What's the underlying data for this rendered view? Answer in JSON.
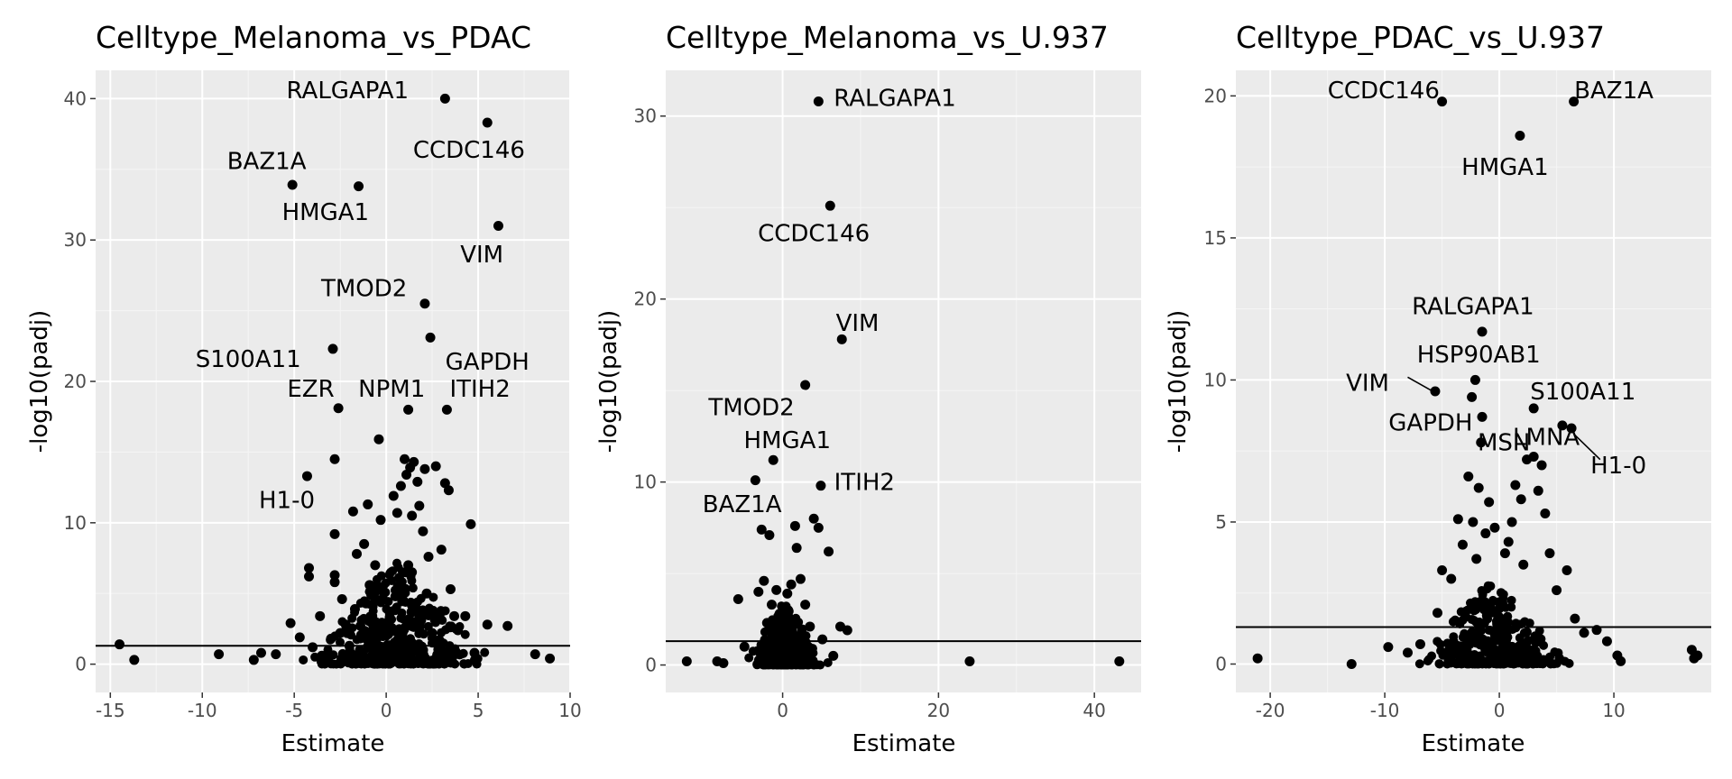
{
  "colors": {
    "panel_bg": "#ebebeb",
    "grid_major": "#ffffff",
    "grid_minor": "#f5f5f5",
    "point": "#000000",
    "hline": "#000000",
    "tick": "#4d4d4d"
  },
  "chart_data": [
    {
      "type": "scatter",
      "title": "Celltype_Melanoma_vs_PDAC",
      "xlabel": "Estimate",
      "ylabel": "-log10(padj)",
      "xlim": [
        -15.8,
        10.0
      ],
      "ylim": [
        -2.0,
        42.0
      ],
      "xticks": [
        -15,
        -10,
        -5,
        0,
        5,
        10
      ],
      "xtick_labels": [
        "-15",
        "-10",
        "-5",
        "0",
        "5",
        "10"
      ],
      "yticks": [
        0,
        10,
        20,
        30,
        40
      ],
      "ytick_labels": [
        "0",
        "10",
        "20",
        "30",
        "40"
      ],
      "hline": 1.3,
      "labels": [
        {
          "text": "RALGAPA1",
          "x": 3.2,
          "y": 40.0,
          "tx": -2.1,
          "ty": 40.6
        },
        {
          "text": "CCDC146",
          "x": 5.5,
          "y": 38.3,
          "tx": 4.5,
          "ty": 36.4
        },
        {
          "text": "BAZ1A",
          "x": -5.1,
          "y": 33.9,
          "tx": -6.5,
          "ty": 35.6
        },
        {
          "text": "HMGA1",
          "x": -1.5,
          "y": 33.8,
          "tx": -3.3,
          "ty": 32.0
        },
        {
          "text": "VIM",
          "x": 6.1,
          "y": 31.0,
          "tx": 5.2,
          "ty": 29.0
        },
        {
          "text": "TMOD2",
          "x": 2.1,
          "y": 25.5,
          "tx": -1.2,
          "ty": 26.6
        },
        {
          "text": "GAPDH",
          "x": 2.4,
          "y": 23.1,
          "tx": 5.5,
          "ty": 21.4
        },
        {
          "text": "S100A11",
          "x": -2.9,
          "y": 22.3,
          "tx": -7.5,
          "ty": 21.6
        },
        {
          "text": "EZR",
          "x": -2.6,
          "y": 18.1,
          "tx": -4.1,
          "ty": 19.5
        },
        {
          "text": "NPM1",
          "x": 1.2,
          "y": 18.0,
          "tx": 0.3,
          "ty": 19.5
        },
        {
          "text": "ITIH2",
          "x": 3.3,
          "y": 18.0,
          "tx": 5.1,
          "ty": 19.5
        },
        {
          "text": "H1-0",
          "x": -4.3,
          "y": 13.3,
          "tx": -5.4,
          "ty": 11.6
        }
      ],
      "points": [
        {
          "x": 3.2,
          "y": 40.0
        },
        {
          "x": 5.5,
          "y": 38.3
        },
        {
          "x": -5.1,
          "y": 33.9
        },
        {
          "x": -1.5,
          "y": 33.8
        },
        {
          "x": 6.1,
          "y": 31.0
        },
        {
          "x": 2.1,
          "y": 25.5
        },
        {
          "x": 2.4,
          "y": 23.1
        },
        {
          "x": -2.9,
          "y": 22.3
        },
        {
          "x": -2.6,
          "y": 18.1
        },
        {
          "x": 1.2,
          "y": 18.0
        },
        {
          "x": 3.3,
          "y": 18.0
        },
        {
          "x": -4.3,
          "y": 13.3
        },
        {
          "x": -14.5,
          "y": 1.4
        },
        {
          "x": -13.7,
          "y": 0.3
        },
        {
          "x": -9.1,
          "y": 0.7
        },
        {
          "x": -7.2,
          "y": 0.3
        },
        {
          "x": -6.8,
          "y": 0.8
        },
        {
          "x": -6.0,
          "y": 0.7
        },
        {
          "x": -5.2,
          "y": 2.9
        },
        {
          "x": -4.7,
          "y": 1.9
        },
        {
          "x": -4.2,
          "y": 6.8
        },
        {
          "x": -4.2,
          "y": 6.2
        },
        {
          "x": -3.6,
          "y": 3.4
        },
        {
          "x": -2.8,
          "y": 14.5
        },
        {
          "x": -2.8,
          "y": 9.2
        },
        {
          "x": -2.8,
          "y": 6.3
        },
        {
          "x": -2.8,
          "y": 5.8
        },
        {
          "x": -2.4,
          "y": 4.6
        },
        {
          "x": -2.2,
          "y": 2.8
        },
        {
          "x": -1.8,
          "y": 10.8
        },
        {
          "x": -1.6,
          "y": 7.8
        },
        {
          "x": -1.2,
          "y": 8.5
        },
        {
          "x": -1.0,
          "y": 11.3
        },
        {
          "x": -0.9,
          "y": 5.6
        },
        {
          "x": -0.6,
          "y": 7.0
        },
        {
          "x": -0.4,
          "y": 15.9
        },
        {
          "x": -0.3,
          "y": 10.2
        },
        {
          "x": 0.4,
          "y": 11.9
        },
        {
          "x": 0.6,
          "y": 10.7
        },
        {
          "x": 0.8,
          "y": 12.6
        },
        {
          "x": 1.0,
          "y": 14.5
        },
        {
          "x": 1.1,
          "y": 13.4
        },
        {
          "x": 1.3,
          "y": 13.9
        },
        {
          "x": 1.4,
          "y": 10.5
        },
        {
          "x": 1.5,
          "y": 14.3
        },
        {
          "x": 1.7,
          "y": 12.9
        },
        {
          "x": 1.8,
          "y": 11.2
        },
        {
          "x": 2.0,
          "y": 9.4
        },
        {
          "x": 2.1,
          "y": 13.8
        },
        {
          "x": 2.3,
          "y": 7.6
        },
        {
          "x": 2.7,
          "y": 14.0
        },
        {
          "x": 3.0,
          "y": 8.1
        },
        {
          "x": 3.2,
          "y": 12.8
        },
        {
          "x": 3.4,
          "y": 12.3
        },
        {
          "x": 3.5,
          "y": 5.3
        },
        {
          "x": 3.7,
          "y": 3.4
        },
        {
          "x": 3.9,
          "y": 2.4
        },
        {
          "x": 4.3,
          "y": 3.4
        },
        {
          "x": 4.6,
          "y": 9.9
        },
        {
          "x": 4.8,
          "y": 0.8
        },
        {
          "x": 5.5,
          "y": 2.8
        },
        {
          "x": 6.6,
          "y": 2.7
        },
        {
          "x": 8.1,
          "y": 0.7
        },
        {
          "x": 8.9,
          "y": 0.4
        },
        {
          "x": -4.0,
          "y": 1.2
        },
        {
          "x": -3.5,
          "y": 0.6
        },
        {
          "x": -3.0,
          "y": 1.8
        },
        {
          "x": -2.5,
          "y": 2.2
        },
        {
          "x": -2.0,
          "y": 1.3
        },
        {
          "x": -1.7,
          "y": 3.9
        },
        {
          "x": -1.4,
          "y": 2.7
        },
        {
          "x": -1.1,
          "y": 4.3
        },
        {
          "x": -0.8,
          "y": 3.2
        },
        {
          "x": -0.5,
          "y": 1.9
        },
        {
          "x": -0.2,
          "y": 2.6
        },
        {
          "x": 0.2,
          "y": 3.6
        },
        {
          "x": 0.5,
          "y": 4.8
        },
        {
          "x": 0.7,
          "y": 6.1
        },
        {
          "x": 0.9,
          "y": 5.4
        },
        {
          "x": 1.2,
          "y": 7.0
        },
        {
          "x": 1.4,
          "y": 6.5
        },
        {
          "x": 1.6,
          "y": 4.0
        },
        {
          "x": 1.9,
          "y": 3.1
        },
        {
          "x": 2.2,
          "y": 5.0
        },
        {
          "x": 2.5,
          "y": 2.2
        },
        {
          "x": 2.8,
          "y": 1.4
        },
        {
          "x": 3.1,
          "y": 0.9
        },
        {
          "x": 3.6,
          "y": 0.5
        }
      ],
      "cloud": {
        "cx": 0.6,
        "sx": 1.8,
        "y_max": 7.5,
        "n": 420
      }
    },
    {
      "type": "scatter",
      "title": "Celltype_Melanoma_vs_U.937",
      "xlabel": "Estimate",
      "ylabel": "-log10(padj)",
      "xlim": [
        -15.0,
        46.0
      ],
      "ylim": [
        -1.5,
        32.5
      ],
      "xticks": [
        0,
        20,
        40
      ],
      "xtick_labels": [
        "0",
        "20",
        "40"
      ],
      "yticks": [
        0,
        10,
        20,
        30
      ],
      "ytick_labels": [
        "0",
        "10",
        "20",
        "30"
      ],
      "hline": 1.3,
      "labels": [
        {
          "text": "RALGAPA1",
          "x": 4.6,
          "y": 30.8,
          "tx": 14.4,
          "ty": 31.0
        },
        {
          "text": "CCDC146",
          "x": 6.1,
          "y": 25.1,
          "tx": 4.0,
          "ty": 23.6
        },
        {
          "text": "VIM",
          "x": 7.6,
          "y": 17.8,
          "tx": 9.6,
          "ty": 18.7
        },
        {
          "text": "TMOD2",
          "x": 2.9,
          "y": 15.3,
          "tx": -4.0,
          "ty": 14.1
        },
        {
          "text": "HMGA1",
          "x": -1.2,
          "y": 11.2,
          "tx": 0.6,
          "ty": 12.3
        },
        {
          "text": "ITIH2",
          "x": 4.9,
          "y": 9.8,
          "tx": 10.5,
          "ty": 10.0
        },
        {
          "text": "BAZ1A",
          "x": -3.5,
          "y": 10.1,
          "tx": -5.2,
          "ty": 8.8
        }
      ],
      "points": [
        {
          "x": 4.6,
          "y": 30.8
        },
        {
          "x": 6.1,
          "y": 25.1
        },
        {
          "x": 7.6,
          "y": 17.8
        },
        {
          "x": 2.9,
          "y": 15.3
        },
        {
          "x": -1.2,
          "y": 11.2
        },
        {
          "x": 4.9,
          "y": 9.8
        },
        {
          "x": -3.5,
          "y": 10.1
        },
        {
          "x": -12.3,
          "y": 0.2
        },
        {
          "x": -8.4,
          "y": 0.2
        },
        {
          "x": -7.6,
          "y": 0.1
        },
        {
          "x": -5.7,
          "y": 3.6
        },
        {
          "x": -4.9,
          "y": 1.0
        },
        {
          "x": -3.1,
          "y": 4.0
        },
        {
          "x": -2.7,
          "y": 7.4
        },
        {
          "x": -2.4,
          "y": 4.6
        },
        {
          "x": -2.0,
          "y": 2.3
        },
        {
          "x": -1.7,
          "y": 7.1
        },
        {
          "x": -1.4,
          "y": 3.3
        },
        {
          "x": -0.8,
          "y": 4.1
        },
        {
          "x": -0.4,
          "y": 2.8
        },
        {
          "x": 0.6,
          "y": 3.9
        },
        {
          "x": 1.1,
          "y": 4.4
        },
        {
          "x": 1.6,
          "y": 7.6
        },
        {
          "x": 1.8,
          "y": 6.4
        },
        {
          "x": 2.3,
          "y": 4.7
        },
        {
          "x": 2.9,
          "y": 3.3
        },
        {
          "x": 3.5,
          "y": 2.1
        },
        {
          "x": 4.0,
          "y": 8.0
        },
        {
          "x": 4.6,
          "y": 7.5
        },
        {
          "x": 5.1,
          "y": 1.4
        },
        {
          "x": 5.9,
          "y": 6.2
        },
        {
          "x": 6.5,
          "y": 0.5
        },
        {
          "x": 7.4,
          "y": 2.1
        },
        {
          "x": 8.3,
          "y": 1.9
        },
        {
          "x": 24.0,
          "y": 0.2
        },
        {
          "x": 43.2,
          "y": 0.2
        }
      ],
      "cloud": {
        "cx": 0.2,
        "sx": 1.8,
        "y_max": 3.5,
        "n": 360
      }
    },
    {
      "type": "scatter",
      "title": "Celltype_PDAC_vs_U.937",
      "xlabel": "Estimate",
      "ylabel": "-log10(padj)",
      "xlim": [
        -23.0,
        18.5
      ],
      "ylim": [
        -1.0,
        20.9
      ],
      "xticks": [
        -20,
        -10,
        0,
        10
      ],
      "xtick_labels": [
        "-20",
        "-10",
        "0",
        "10"
      ],
      "yticks": [
        0,
        5,
        10,
        15,
        20
      ],
      "ytick_labels": [
        "0",
        "5",
        "10",
        "15",
        "20"
      ],
      "hline": 1.3,
      "labels": [
        {
          "text": "CCDC146",
          "x": -5.0,
          "y": 19.8,
          "tx": -10.1,
          "ty": 20.2
        },
        {
          "text": "BAZ1A",
          "x": 6.5,
          "y": 19.8,
          "tx": 10.0,
          "ty": 20.2
        },
        {
          "text": "HMGA1",
          "x": 1.8,
          "y": 18.6,
          "tx": 0.5,
          "ty": 17.5
        },
        {
          "text": "RALGAPA1",
          "x": -1.5,
          "y": 11.7,
          "tx": -2.3,
          "ty": 12.6
        },
        {
          "text": "HSP90AB1",
          "x": -2.1,
          "y": 10.0,
          "tx": -1.8,
          "ty": 10.9
        },
        {
          "text": "S100A11",
          "x": 3.0,
          "y": 9.0,
          "tx": 7.3,
          "ty": 9.6
        },
        {
          "text": "VIM",
          "x": -5.6,
          "y": 9.6,
          "tx": -11.5,
          "ty": 9.9,
          "leader": [
            -8.0,
            10.1,
            -5.8,
            9.6
          ]
        },
        {
          "text": "GAPDH",
          "x": -1.5,
          "y": 8.7,
          "tx": -6.0,
          "ty": 8.5
        },
        {
          "text": "LMNA",
          "x": 5.5,
          "y": 8.4,
          "tx": 4.1,
          "ty": 8.0
        },
        {
          "text": "MSN",
          "x": -1.6,
          "y": 7.8,
          "tx": 0.4,
          "ty": 7.8
        },
        {
          "text": "H1-0",
          "x": 6.3,
          "y": 8.3,
          "tx": 10.4,
          "ty": 7.0,
          "leader": [
            6.5,
            8.1,
            8.8,
            7.2
          ]
        }
      ],
      "points": [
        {
          "x": -5.0,
          "y": 19.8
        },
        {
          "x": 6.5,
          "y": 19.8
        },
        {
          "x": 1.8,
          "y": 18.6
        },
        {
          "x": -1.5,
          "y": 11.7
        },
        {
          "x": -2.1,
          "y": 10.0
        },
        {
          "x": 3.0,
          "y": 9.0
        },
        {
          "x": -5.6,
          "y": 9.6
        },
        {
          "x": -1.5,
          "y": 8.7
        },
        {
          "x": 5.5,
          "y": 8.4
        },
        {
          "x": -1.6,
          "y": 7.8
        },
        {
          "x": 6.3,
          "y": 8.3
        },
        {
          "x": -2.4,
          "y": 9.4
        },
        {
          "x": -21.1,
          "y": 0.2
        },
        {
          "x": -12.9,
          "y": 0.0
        },
        {
          "x": -9.7,
          "y": 0.6
        },
        {
          "x": -8.0,
          "y": 0.4
        },
        {
          "x": -6.9,
          "y": 0.7
        },
        {
          "x": -5.4,
          "y": 1.8
        },
        {
          "x": -5.0,
          "y": 3.3
        },
        {
          "x": -4.2,
          "y": 3.0
        },
        {
          "x": -3.6,
          "y": 5.1
        },
        {
          "x": -3.2,
          "y": 4.2
        },
        {
          "x": -2.7,
          "y": 6.6
        },
        {
          "x": -2.3,
          "y": 5.0
        },
        {
          "x": -1.8,
          "y": 6.2
        },
        {
          "x": 0.8,
          "y": 4.3
        },
        {
          "x": 1.4,
          "y": 6.3
        },
        {
          "x": 1.9,
          "y": 5.8
        },
        {
          "x": 2.4,
          "y": 7.2
        },
        {
          "x": 3.0,
          "y": 7.3
        },
        {
          "x": 3.4,
          "y": 6.1
        },
        {
          "x": 3.7,
          "y": 7.0
        },
        {
          "x": 4.0,
          "y": 5.3
        },
        {
          "x": 4.4,
          "y": 3.9
        },
        {
          "x": 5.0,
          "y": 2.6
        },
        {
          "x": 5.9,
          "y": 3.3
        },
        {
          "x": 6.6,
          "y": 1.6
        },
        {
          "x": 7.4,
          "y": 1.1
        },
        {
          "x": 8.5,
          "y": 1.2
        },
        {
          "x": 9.4,
          "y": 0.8
        },
        {
          "x": 10.3,
          "y": 0.3
        },
        {
          "x": 10.6,
          "y": 0.1
        },
        {
          "x": 16.8,
          "y": 0.5
        },
        {
          "x": 17.0,
          "y": 0.2
        },
        {
          "x": 17.3,
          "y": 0.3
        },
        {
          "x": -0.9,
          "y": 5.7
        },
        {
          "x": -1.2,
          "y": 4.6
        },
        {
          "x": 1.1,
          "y": 5.0
        },
        {
          "x": 2.1,
          "y": 3.5
        },
        {
          "x": -2.0,
          "y": 3.7
        },
        {
          "x": 0.5,
          "y": 3.9
        },
        {
          "x": -0.4,
          "y": 4.8
        }
      ],
      "cloud": {
        "cx": -0.6,
        "sx": 2.3,
        "y_max": 3.0,
        "n": 380
      }
    }
  ]
}
